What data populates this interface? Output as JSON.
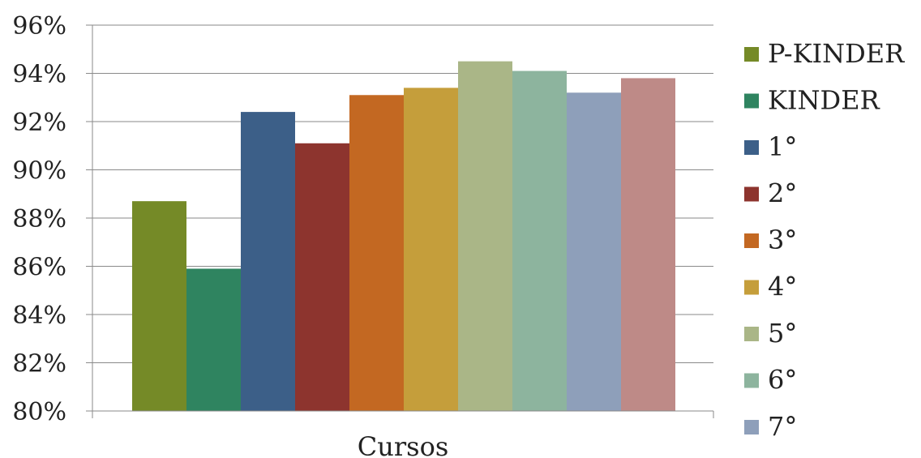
{
  "chart_data": {
    "type": "bar",
    "title": "",
    "xlabel": "Cursos",
    "ylabel": "",
    "ylim": [
      0.8,
      0.96
    ],
    "yticks": [
      "80%",
      "82%",
      "84%",
      "86%",
      "88%",
      "90%",
      "92%",
      "94%",
      "96%"
    ],
    "ytick_values": [
      0.8,
      0.82,
      0.84,
      0.86,
      0.88,
      0.9,
      0.92,
      0.94,
      0.96
    ],
    "grid": true,
    "legend_position": "right",
    "categories": [
      "Cursos"
    ],
    "series": [
      {
        "name": "P-KINDER",
        "values": [
          0.887
        ],
        "color": "#758A27"
      },
      {
        "name": "KINDER",
        "values": [
          0.859
        ],
        "color": "#2F8460"
      },
      {
        "name": "1°",
        "values": [
          0.924
        ],
        "color": "#3C5F88"
      },
      {
        "name": "2°",
        "values": [
          0.911
        ],
        "color": "#8D342E"
      },
      {
        "name": "3°",
        "values": [
          0.931
        ],
        "color": "#C36822"
      },
      {
        "name": "4°",
        "values": [
          0.934
        ],
        "color": "#C59E3B"
      },
      {
        "name": "5°",
        "values": [
          0.945
        ],
        "color": "#AAB687"
      },
      {
        "name": "6°",
        "values": [
          0.941
        ],
        "color": "#8DB49E"
      },
      {
        "name": "7°",
        "values": [
          0.932
        ],
        "color": "#8E9FBA"
      },
      {
        "name": "",
        "values": [
          0.938
        ],
        "color": "#BE8A87"
      }
    ]
  }
}
